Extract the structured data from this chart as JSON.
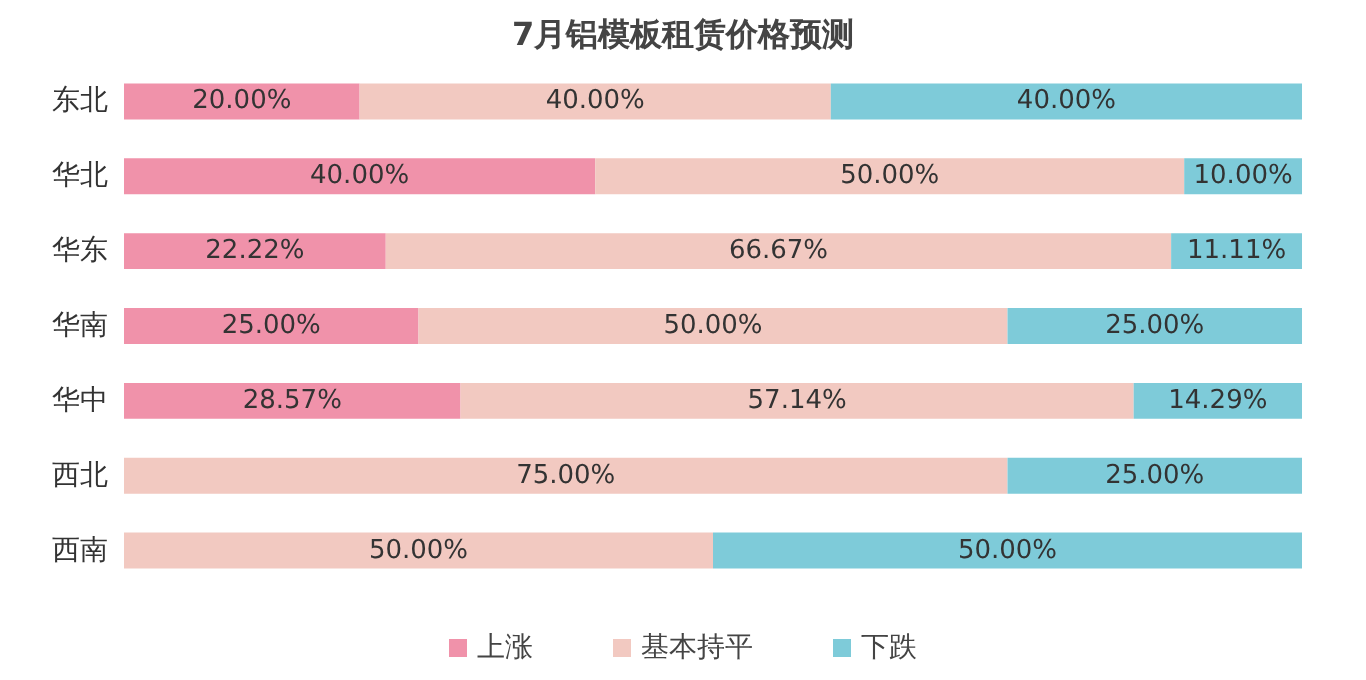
{
  "chart_data": {
    "type": "bar",
    "title": "7月铝模板租赁价格预测",
    "orientation": "horizontal",
    "stacked": true,
    "categories": [
      "东北",
      "华北",
      "华东",
      "华南",
      "华中",
      "西北",
      "西南"
    ],
    "xlim": [
      0,
      100
    ],
    "tick_labels": "y",
    "grid": false,
    "legend": "bottom",
    "series": [
      {
        "name": "上涨",
        "color": "#f092aa",
        "values": [
          20,
          40,
          22.22,
          25,
          28.57,
          0,
          0
        ],
        "value_labels": [
          "20.00%",
          "40.00%",
          "22.22%",
          "25.00%",
          "28.57%",
          null,
          null
        ]
      },
      {
        "name": "基本持平",
        "color": "#f2c9c1",
        "values": [
          40,
          50,
          66.67,
          50,
          57.14,
          75,
          50
        ],
        "value_labels": [
          "40.00%",
          "50.00%",
          "66.67%",
          "50.00%",
          "57.14%",
          "75.00%",
          "50.00%"
        ]
      },
      {
        "name": "下跌",
        "color": "#7ecbd9",
        "values": [
          40,
          10,
          11.11,
          25,
          14.29,
          25,
          50
        ],
        "value_labels": [
          "40.00%",
          "10.00%",
          "11.11%",
          "25.00%",
          "14.29%",
          "25.00%",
          "50.00%"
        ]
      }
    ]
  }
}
